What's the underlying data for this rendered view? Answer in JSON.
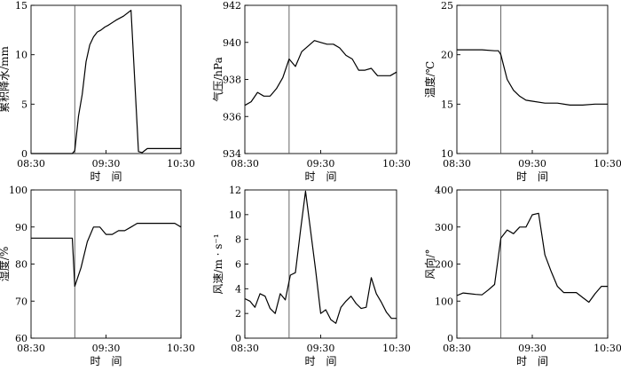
{
  "chart_data": [
    {
      "type": "line",
      "ylabel": "累积降水/mm",
      "xlabel": "时　间",
      "xticks": [
        "08:30",
        "09:30",
        "10:30"
      ],
      "xlim": [
        0,
        120
      ],
      "ylim": [
        0,
        15
      ],
      "yticks": [
        "0",
        "5",
        "10",
        "15"
      ],
      "event_time": 35,
      "x": [
        0,
        33,
        35,
        38,
        41,
        44,
        47,
        50,
        53,
        56,
        59,
        62,
        68,
        74,
        80,
        86,
        89,
        93,
        96,
        100,
        120
      ],
      "y": [
        0,
        0,
        0.3,
        3.8,
        6.0,
        9.3,
        11.0,
        11.8,
        12.3,
        12.5,
        12.8,
        13.0,
        13.5,
        13.9,
        14.5,
        0.2,
        0.1,
        0.5,
        0.5,
        0.5,
        0.5
      ]
    },
    {
      "type": "line",
      "ylabel": "气压/hPa",
      "xlabel": "时　间",
      "xticks": [
        "08:30",
        "09:30",
        "10:30"
      ],
      "xlim": [
        0,
        120
      ],
      "ylim": [
        934,
        942
      ],
      "yticks": [
        "934",
        "936",
        "938",
        "940",
        "942"
      ],
      "event_time": 35,
      "x": [
        0,
        5,
        10,
        15,
        20,
        25,
        30,
        35,
        40,
        45,
        50,
        55,
        60,
        65,
        70,
        75,
        80,
        85,
        90,
        95,
        100,
        105,
        110,
        115,
        120
      ],
      "y": [
        936.6,
        936.8,
        937.3,
        937.1,
        937.1,
        937.5,
        938.1,
        939.1,
        938.7,
        939.5,
        939.8,
        940.1,
        940.0,
        939.9,
        939.9,
        939.7,
        939.3,
        939.1,
        938.5,
        938.5,
        938.6,
        938.2,
        938.2,
        938.2,
        938.4
      ]
    },
    {
      "type": "line",
      "ylabel": "温度/℃",
      "xlabel": "时　间",
      "xticks": [
        "08:30",
        "09:30",
        "10:30"
      ],
      "xlim": [
        0,
        120
      ],
      "ylim": [
        10,
        25
      ],
      "yticks": [
        "10",
        "15",
        "20",
        "25"
      ],
      "event_time": 35,
      "x": [
        0,
        10,
        20,
        30,
        33,
        35,
        37,
        40,
        45,
        50,
        55,
        60,
        70,
        80,
        90,
        100,
        110,
        120
      ],
      "y": [
        20.5,
        20.5,
        20.5,
        20.4,
        20.4,
        20.0,
        19.0,
        17.5,
        16.4,
        15.8,
        15.4,
        15.3,
        15.1,
        15.1,
        14.9,
        14.9,
        15.0,
        15.0
      ]
    },
    {
      "type": "line",
      "ylabel": "湿度/%",
      "xlabel": "时　间",
      "xticks": [
        "08:30",
        "09:30",
        "10:30"
      ],
      "xlim": [
        0,
        120
      ],
      "ylim": [
        60,
        100
      ],
      "yticks": [
        "60",
        "70",
        "80",
        "90",
        "100"
      ],
      "event_time": 35,
      "x": [
        0,
        5,
        10,
        15,
        20,
        25,
        30,
        33,
        35,
        37,
        40,
        45,
        50,
        55,
        60,
        65,
        70,
        75,
        80,
        85,
        90,
        95,
        100,
        105,
        110,
        115,
        120
      ],
      "y": [
        87,
        87,
        87,
        87,
        87,
        87,
        87,
        87,
        74,
        76,
        79,
        86,
        90,
        90,
        88,
        88,
        89,
        89,
        90,
        91,
        91,
        91,
        91,
        91,
        91,
        91,
        90
      ]
    },
    {
      "type": "line",
      "ylabel": "风速/m · s⁻¹",
      "xlabel": "时　间",
      "xticks": [
        "08:30",
        "09:30",
        "10:30"
      ],
      "xlim": [
        0,
        120
      ],
      "ylim": [
        0,
        12
      ],
      "yticks": [
        "0",
        "2",
        "4",
        "6",
        "8",
        "10",
        "12"
      ],
      "event_time": 35,
      "x": [
        0,
        4,
        8,
        12,
        16,
        20,
        24,
        28,
        32,
        36,
        40,
        44,
        48,
        52,
        56,
        60,
        64,
        68,
        72,
        76,
        80,
        84,
        88,
        92,
        96,
        100,
        104,
        108,
        112,
        116,
        120
      ],
      "y": [
        3.2,
        3.0,
        2.5,
        3.6,
        3.4,
        2.4,
        2.0,
        3.6,
        3.1,
        5.1,
        5.3,
        8.7,
        11.9,
        8.7,
        5.5,
        2.0,
        2.3,
        1.5,
        1.2,
        2.5,
        3.0,
        3.4,
        2.8,
        2.4,
        2.5,
        4.9,
        3.6,
        2.9,
        2.1,
        1.6,
        1.6
      ]
    },
    {
      "type": "line",
      "ylabel": "风向/°",
      "xlabel": "时　间",
      "xticks": [
        "08:30",
        "09:30",
        "10:30"
      ],
      "xlim": [
        0,
        120
      ],
      "ylim": [
        0,
        400
      ],
      "yticks": [
        "0",
        "100",
        "200",
        "300",
        "400"
      ],
      "event_time": 35,
      "x": [
        0,
        5,
        10,
        15,
        20,
        25,
        30,
        35,
        40,
        45,
        50,
        55,
        60,
        65,
        70,
        75,
        80,
        85,
        90,
        95,
        100,
        105,
        110,
        115,
        120
      ],
      "y": [
        115,
        122,
        120,
        118,
        117,
        130,
        145,
        270,
        292,
        282,
        300,
        300,
        333,
        337,
        225,
        180,
        140,
        123,
        123,
        123,
        110,
        97,
        120,
        140,
        140
      ]
    }
  ]
}
